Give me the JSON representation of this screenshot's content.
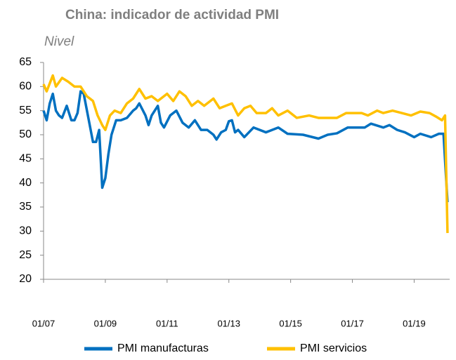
{
  "chart_data": {
    "type": "line",
    "title": "China: indicador de actividad PMI",
    "subtitle": "Nivel",
    "xlim": [
      2007,
      2020.15
    ],
    "ylim": [
      20,
      65
    ],
    "yticks": [
      20,
      25,
      30,
      35,
      40,
      45,
      50,
      55,
      60,
      65
    ],
    "xticks": [
      {
        "value": 2007,
        "label": "01/07"
      },
      {
        "value": 2009,
        "label": "01/09"
      },
      {
        "value": 2011,
        "label": "01/11"
      },
      {
        "value": 2013,
        "label": "01/13"
      },
      {
        "value": 2015,
        "label": "01/15"
      },
      {
        "value": 2017,
        "label": "01/17"
      },
      {
        "value": 2019,
        "label": "01/19"
      }
    ],
    "grid": false,
    "legend": "bottom",
    "series": [
      {
        "name": "PMI manufacturas",
        "color": "#0070c0",
        "x": [
          2007.0,
          2007.1,
          2007.2,
          2007.3,
          2007.4,
          2007.5,
          2007.6,
          2007.75,
          2007.9,
          2008.0,
          2008.1,
          2008.2,
          2008.3,
          2008.45,
          2008.6,
          2008.7,
          2008.8,
          2008.9,
          2009.0,
          2009.1,
          2009.2,
          2009.35,
          2009.5,
          2009.7,
          2009.9,
          2010.0,
          2010.1,
          2010.3,
          2010.4,
          2010.5,
          2010.7,
          2010.8,
          2010.9,
          2011.1,
          2011.3,
          2011.5,
          2011.7,
          2011.9,
          2012.1,
          2012.3,
          2012.5,
          2012.6,
          2012.75,
          2012.9,
          2013.0,
          2013.1,
          2013.2,
          2013.3,
          2013.5,
          2013.8,
          2014.2,
          2014.6,
          2014.9,
          2015.4,
          2015.9,
          2016.2,
          2016.5,
          2016.85,
          2017.4,
          2017.6,
          2018.0,
          2018.2,
          2018.45,
          2018.7,
          2019.0,
          2019.2,
          2019.55,
          2019.8,
          2019.95,
          2020.08
        ],
        "values": [
          55,
          53,
          56.5,
          58.5,
          55,
          54,
          53.5,
          56,
          53,
          53,
          54.5,
          59,
          58.5,
          53.5,
          48.5,
          48.5,
          51,
          39,
          41,
          46,
          50,
          53,
          53,
          53.5,
          55,
          55.5,
          56.5,
          54,
          52,
          54,
          56,
          52.5,
          51.5,
          54,
          55,
          52.5,
          51.5,
          53,
          51,
          51,
          50,
          49,
          50.5,
          51,
          52.8,
          53,
          50.5,
          51,
          49.5,
          51.5,
          50.5,
          51.5,
          50.2,
          50,
          49.2,
          50,
          50.3,
          51.5,
          51.5,
          52.3,
          51.5,
          52,
          51,
          50.5,
          49.5,
          50.2,
          49.5,
          50.2,
          50.2,
          36
        ]
      },
      {
        "name": "PMI servicios",
        "color": "#ffc000",
        "x": [
          2007.0,
          2007.1,
          2007.3,
          2007.4,
          2007.6,
          2007.8,
          2008.0,
          2008.2,
          2008.4,
          2008.6,
          2008.75,
          2008.9,
          2009.0,
          2009.15,
          2009.3,
          2009.5,
          2009.7,
          2009.9,
          2010.1,
          2010.3,
          2010.5,
          2010.7,
          2011.0,
          2011.2,
          2011.4,
          2011.6,
          2011.8,
          2012.0,
          2012.2,
          2012.5,
          2012.7,
          2012.9,
          2013.1,
          2013.3,
          2013.5,
          2013.7,
          2013.9,
          2014.2,
          2014.4,
          2014.6,
          2014.9,
          2015.2,
          2015.6,
          2015.9,
          2016.2,
          2016.5,
          2016.8,
          2017.0,
          2017.3,
          2017.5,
          2017.8,
          2018.0,
          2018.3,
          2018.6,
          2018.9,
          2019.2,
          2019.5,
          2019.7,
          2019.9,
          2020.0,
          2020.08
        ],
        "values": [
          60.5,
          59,
          62.3,
          60,
          61.8,
          61,
          60,
          60,
          58,
          57,
          54,
          52,
          51,
          54,
          55,
          54.5,
          56.5,
          57.5,
          59.5,
          57.5,
          58,
          57,
          58.5,
          57,
          59,
          58,
          56,
          57,
          56,
          57.5,
          55.5,
          56,
          56.5,
          54,
          55.5,
          56,
          54.5,
          54.5,
          55.5,
          54,
          55,
          53.5,
          54,
          53.5,
          53.5,
          53.5,
          54.5,
          54.5,
          54.5,
          54,
          55,
          54.5,
          55,
          54.5,
          54,
          54.8,
          54.5,
          53.8,
          53,
          54,
          29.6
        ]
      }
    ]
  }
}
